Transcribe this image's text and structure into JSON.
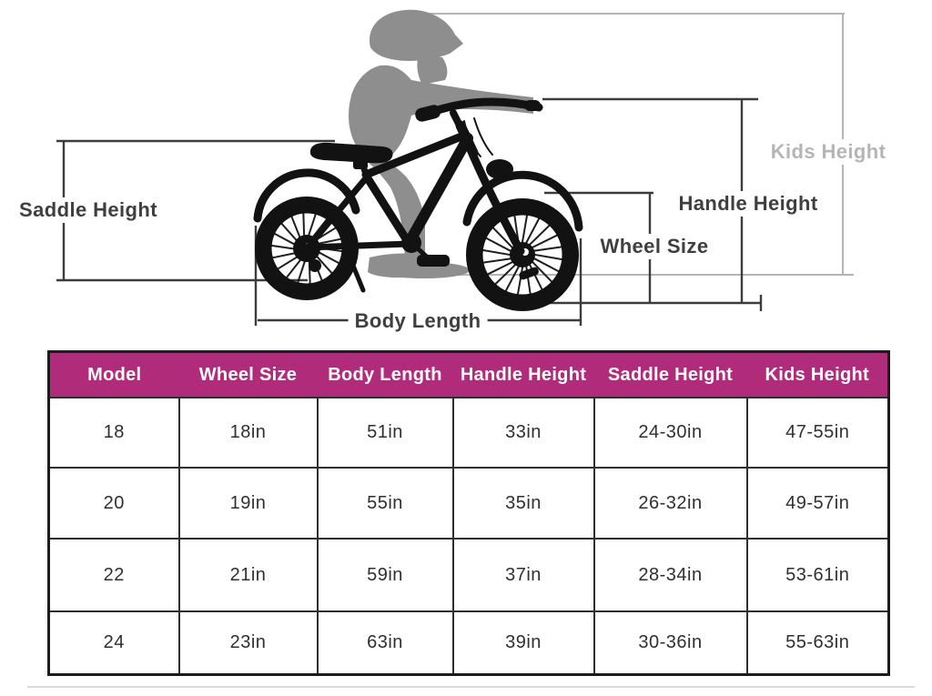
{
  "diagram": {
    "labels": {
      "saddle_height": "Saddle Height",
      "kids_height": "Kids Height",
      "handle_height": "Handle Height",
      "wheel_size": "Wheel Size",
      "body_length": "Body Length"
    },
    "colors": {
      "dimension_line": "#3c3c3c",
      "kids_height_line": "#b5b5b5",
      "kid_silhouette": "#8e8e8e",
      "bike_silhouette": "#121212"
    }
  },
  "table": {
    "headers": [
      "Model",
      "Wheel Size",
      "Body Length",
      "Handle Height",
      "Saddle Height",
      "Kids Height"
    ],
    "rows": [
      [
        "18",
        "18in",
        "51in",
        "33in",
        "24-30in",
        "47-55in"
      ],
      [
        "20",
        "19in",
        "55in",
        "35in",
        "26-32in",
        "49-57in"
      ],
      [
        "22",
        "21in",
        "59in",
        "37in",
        "28-34in",
        "53-61in"
      ],
      [
        "24",
        "23in",
        "63in",
        "39in",
        "30-36in",
        "55-63in"
      ]
    ],
    "colors": {
      "header_bg": "#b12b7b",
      "header_text": "#ffffff",
      "cell_text": "#2f2f2f",
      "border": "#2e2e2e",
      "outer_border": "#1c1c1c"
    }
  }
}
